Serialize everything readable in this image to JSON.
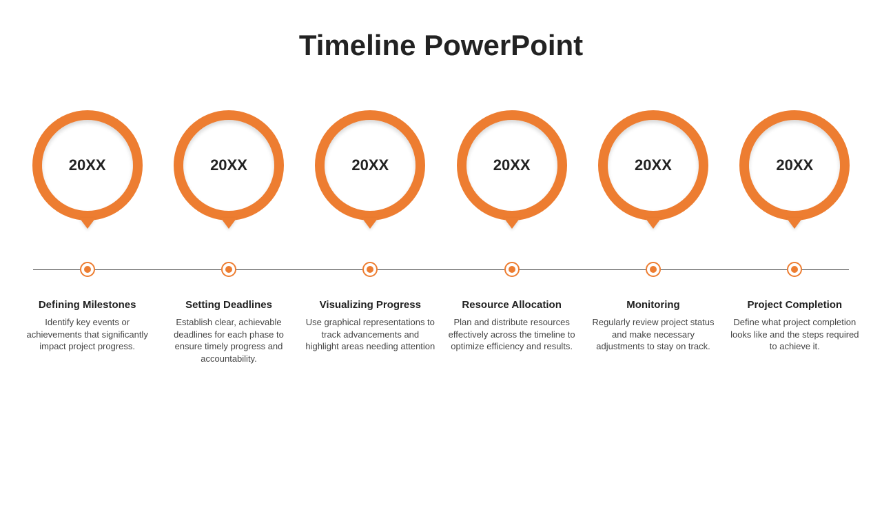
{
  "title": "Timeline PowerPoint",
  "colors": {
    "accent": "#ed7d31",
    "axis": "#555555",
    "background": "#ffffff",
    "title_color": "#222222",
    "heading_color": "#222222",
    "body_color": "#444444"
  },
  "typography": {
    "title_fontsize": 42,
    "title_weight": 700,
    "year_fontsize": 22,
    "year_weight": 700,
    "heading_fontsize": 15,
    "heading_weight": 700,
    "body_fontsize": 13,
    "body_weight": 400
  },
  "layout": {
    "marker_diameter": 160,
    "marker_ring_width": 14,
    "dot_diameter": 22,
    "dot_core_diameter": 10,
    "dot_ring_width": 2,
    "tail_width": 24,
    "tail_height": 16
  },
  "items": [
    {
      "year": "20XX",
      "heading": "Defining Milestones",
      "body": "Identify key events or achievements that significantly impact project progress."
    },
    {
      "year": "20XX",
      "heading": "Setting Deadlines",
      "body": "Establish clear, achievable deadlines for each phase to ensure timely progress and accountability."
    },
    {
      "year": "20XX",
      "heading": "Visualizing Progress",
      "body": "Use graphical representations to track advancements and highlight areas needing attention"
    },
    {
      "year": "20XX",
      "heading": "Resource Allocation",
      "body": "Plan and distribute resources effectively across the timeline to optimize efficiency and results."
    },
    {
      "year": "20XX",
      "heading": "Monitoring",
      "body": "Regularly review project status and make necessary adjustments to stay on track."
    },
    {
      "year": "20XX",
      "heading": "Project Completion",
      "body": "Define what project completion looks like and the steps required to achieve it."
    }
  ]
}
